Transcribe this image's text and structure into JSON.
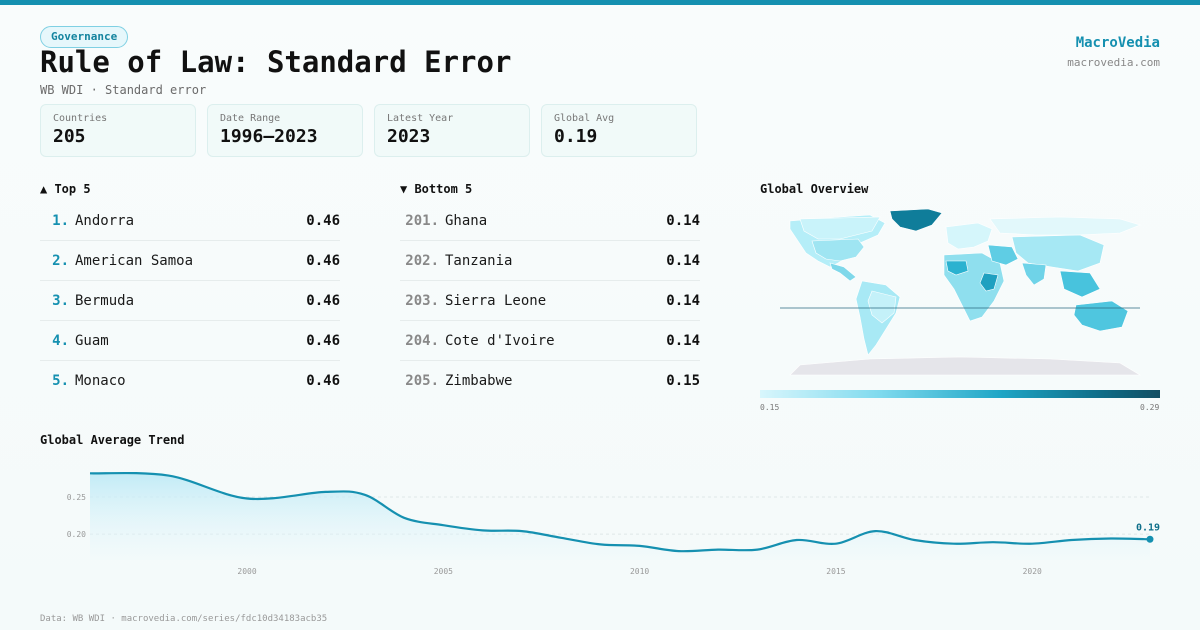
{
  "header": {
    "badge": "Governance",
    "title": "Rule of Law: Standard Error",
    "subtitle": "WB WDI · Standard error",
    "brand": "MacroVedia",
    "brand_url": "macrovedia.com"
  },
  "stats": [
    {
      "label": "Countries",
      "value": "205"
    },
    {
      "label": "Date Range",
      "value": "1996–2023"
    },
    {
      "label": "Latest Year",
      "value": "2023"
    },
    {
      "label": "Global Avg",
      "value": "0.19"
    }
  ],
  "top": {
    "heading": "▲ Top 5",
    "items": [
      {
        "rank": "1.",
        "name": "Andorra",
        "value": "0.46"
      },
      {
        "rank": "2.",
        "name": "American Samoa",
        "value": "0.46"
      },
      {
        "rank": "3.",
        "name": "Bermuda",
        "value": "0.46"
      },
      {
        "rank": "4.",
        "name": "Guam",
        "value": "0.46"
      },
      {
        "rank": "5.",
        "name": "Monaco",
        "value": "0.46"
      }
    ]
  },
  "bottom": {
    "heading": "▼ Bottom 5",
    "items": [
      {
        "rank": "201.",
        "name": "Ghana",
        "value": "0.14"
      },
      {
        "rank": "202.",
        "name": "Tanzania",
        "value": "0.14"
      },
      {
        "rank": "203.",
        "name": "Sierra Leone",
        "value": "0.14"
      },
      {
        "rank": "204.",
        "name": "Cote d'Ivoire",
        "value": "0.14"
      },
      {
        "rank": "205.",
        "name": "Zimbabwe",
        "value": "0.15"
      }
    ]
  },
  "map": {
    "heading": "Global Overview",
    "scale_min": "0.15",
    "scale_max": "0.29"
  },
  "trend": {
    "heading": "Global Average Trend",
    "last_label": "0.19"
  },
  "footer": "Data: WB WDI · macrovedia.com/series/fdc10d34183acb35",
  "colors": {
    "accent": "#1590b0",
    "line": "#1590b0",
    "area": "#cdeff7"
  },
  "chart_data": {
    "type": "area",
    "title": "Global Average Trend",
    "x": [
      1996,
      1998,
      2000,
      2002,
      2003,
      2004,
      2005,
      2006,
      2007,
      2008,
      2009,
      2010,
      2011,
      2012,
      2013,
      2014,
      2015,
      2016,
      2017,
      2018,
      2019,
      2020,
      2021,
      2022,
      2023
    ],
    "values": [
      0.282,
      0.279,
      0.248,
      0.257,
      0.253,
      0.222,
      0.212,
      0.205,
      0.204,
      0.195,
      0.186,
      0.184,
      0.177,
      0.179,
      0.179,
      0.192,
      0.187,
      0.204,
      0.192,
      0.187,
      0.189,
      0.187,
      0.192,
      0.194,
      0.193
    ],
    "xticks": [
      2000,
      2005,
      2010,
      2015,
      2020
    ],
    "yticks": [
      0.2,
      0.25
    ],
    "xlim": [
      1996,
      2023
    ],
    "ylim": [
      0.165,
      0.3
    ],
    "grid": true
  }
}
